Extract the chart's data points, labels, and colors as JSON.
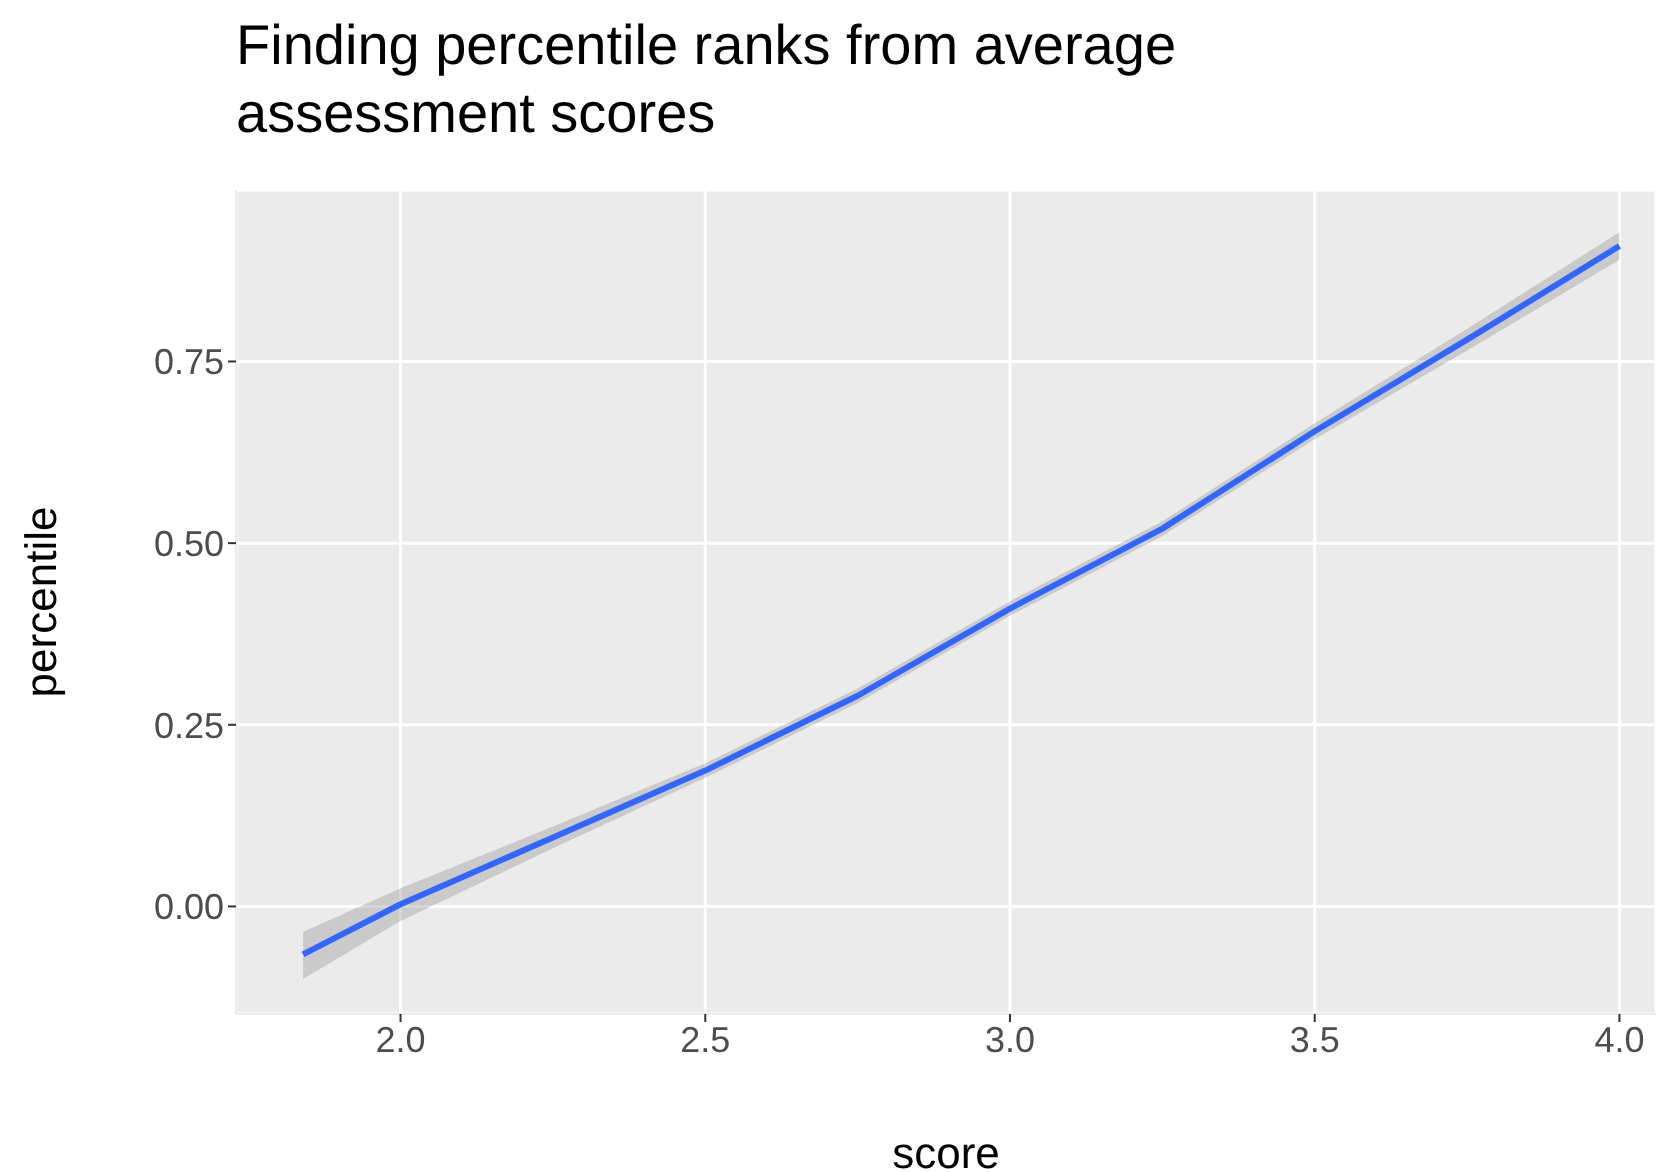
{
  "chart_data": {
    "type": "line",
    "title": "Finding percentile ranks from average assessment scores",
    "xlabel": "score",
    "ylabel": "percentile",
    "x": [
      1.84,
      2.0,
      2.25,
      2.5,
      2.75,
      3.0,
      3.25,
      3.5,
      3.75,
      4.0
    ],
    "series": [
      {
        "color": "#3366ff",
        "values": [
          -0.066,
          0.003,
          0.095,
          0.187,
          0.29,
          0.41,
          0.52,
          0.654,
          0.78,
          0.909
        ],
        "lower": [
          -0.1,
          -0.02,
          0.08,
          0.177,
          0.28,
          0.4,
          0.51,
          0.643,
          0.765,
          0.89
        ],
        "upper": [
          -0.035,
          0.025,
          0.11,
          0.197,
          0.3,
          0.42,
          0.53,
          0.665,
          0.795,
          0.928
        ]
      }
    ],
    "xlim": [
      1.73,
      4.06
    ],
    "xticks": [
      {
        "value": 2,
        "label": "2.0"
      },
      {
        "value": 2.5,
        "label": "2.5"
      },
      {
        "value": 3,
        "label": "3.0"
      },
      {
        "value": 3.5,
        "label": "3.5"
      },
      {
        "value": 4,
        "label": "4.0"
      }
    ],
    "ylim": [
      -0.148,
      0.986
    ],
    "yticks": [
      {
        "value": 0,
        "label": "0.00"
      },
      {
        "value": 0.25,
        "label": "0.25"
      },
      {
        "value": 0.5,
        "label": "0.50"
      },
      {
        "value": 0.75,
        "label": "0.75"
      }
    ],
    "grid": true,
    "marker": "none",
    "line_style": "solid"
  }
}
